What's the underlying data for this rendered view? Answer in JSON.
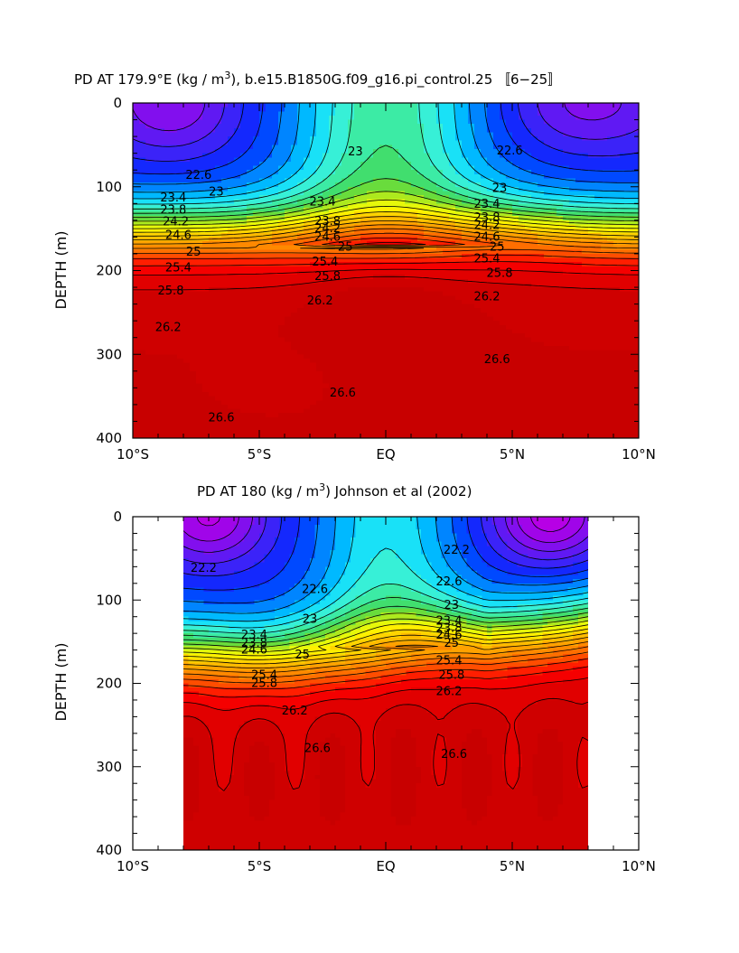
{
  "chart_data": [
    {
      "type": "contour",
      "title": "PD AT 179.9°E (kg / m³), b.e15.B1850G.f09_g16.pi_control.25 〚6−25〛",
      "title_main": "PD AT 179.9°E (kg / m",
      "title_sup": "3",
      "title_rest": "), b.e15.B1850G.f09_g16.pi_control.25 〚6−25〛",
      "ylabel": "DEPTH (m)",
      "xlim": [
        -10,
        10
      ],
      "ylim": [
        400,
        0
      ],
      "x_ticklabels": [
        "10°S",
        "5°S",
        "EQ",
        "5°N",
        "10°N"
      ],
      "y_ticklabels": [
        "0",
        "100",
        "200",
        "300",
        "400"
      ],
      "data_x": [
        -10,
        10
      ],
      "levels": [
        21.0,
        21.2,
        21.4,
        21.6,
        21.8,
        22.0,
        22.2,
        22.4,
        22.6,
        22.8,
        23.0,
        23.2,
        23.4,
        23.6,
        23.8,
        24.0,
        24.2,
        24.4,
        24.6,
        24.8,
        25.0,
        25.2,
        25.4,
        25.6,
        25.8,
        26.0,
        26.2,
        26.4,
        26.6
      ],
      "contour_labels": [
        {
          "text": "22.6",
          "x": -7.4,
          "y": 86
        },
        {
          "text": "23",
          "x": -6.7,
          "y": 106
        },
        {
          "text": "23.4",
          "x": -8.4,
          "y": 113
        },
        {
          "text": "23.8",
          "x": -8.4,
          "y": 128
        },
        {
          "text": "24.2",
          "x": -8.3,
          "y": 142
        },
        {
          "text": "24.6",
          "x": -8.2,
          "y": 158
        },
        {
          "text": "25",
          "x": -7.6,
          "y": 178
        },
        {
          "text": "25.4",
          "x": -8.2,
          "y": 197
        },
        {
          "text": "25.8",
          "x": -8.5,
          "y": 224
        },
        {
          "text": "26.2",
          "x": -8.6,
          "y": 268
        },
        {
          "text": "26.6",
          "x": -6.5,
          "y": 376
        },
        {
          "text": "23",
          "x": -1.2,
          "y": 58
        },
        {
          "text": "23.4",
          "x": -2.5,
          "y": 118
        },
        {
          "text": "23.8",
          "x": -2.3,
          "y": 141
        },
        {
          "text": "24.2",
          "x": -2.3,
          "y": 150
        },
        {
          "text": "24.6",
          "x": -2.3,
          "y": 160
        },
        {
          "text": "25",
          "x": -1.6,
          "y": 172
        },
        {
          "text": "25.4",
          "x": -2.4,
          "y": 190
        },
        {
          "text": "25.8",
          "x": -2.3,
          "y": 207
        },
        {
          "text": "26.2",
          "x": -2.6,
          "y": 236
        },
        {
          "text": "26.6",
          "x": -1.7,
          "y": 346
        },
        {
          "text": "22.6",
          "x": 4.9,
          "y": 57
        },
        {
          "text": "23",
          "x": 4.5,
          "y": 102
        },
        {
          "text": "23.4",
          "x": 4.0,
          "y": 121
        },
        {
          "text": "23.8",
          "x": 4.0,
          "y": 137
        },
        {
          "text": "24.2",
          "x": 4.0,
          "y": 146
        },
        {
          "text": "24.6",
          "x": 4.0,
          "y": 160
        },
        {
          "text": "25",
          "x": 4.4,
          "y": 172
        },
        {
          "text": "25.4",
          "x": 4.0,
          "y": 186
        },
        {
          "text": "25.8",
          "x": 4.5,
          "y": 203
        },
        {
          "text": "26.2",
          "x": 4.0,
          "y": 231
        },
        {
          "text": "26.6",
          "x": 4.4,
          "y": 306
        }
      ],
      "grid": false,
      "legend": "none"
    },
    {
      "type": "contour",
      "title": "PD AT 180 (kg / m³) Johnson et al (2002)",
      "title_main": "PD AT 180 (kg / m",
      "title_sup": "3",
      "title_rest": ") Johnson et al (2002)",
      "ylabel": "DEPTH (m)",
      "xlim": [
        -10,
        10
      ],
      "ylim": [
        400,
        0
      ],
      "x_ticklabels": [
        "10°S",
        "5°S",
        "EQ",
        "5°N",
        "10°N"
      ],
      "y_ticklabels": [
        "0",
        "100",
        "200",
        "300",
        "400"
      ],
      "data_x": [
        -8,
        8
      ],
      "levels": [
        21.0,
        21.2,
        21.4,
        21.6,
        21.8,
        22.0,
        22.2,
        22.4,
        22.6,
        22.8,
        23.0,
        23.2,
        23.4,
        23.6,
        23.8,
        24.0,
        24.2,
        24.4,
        24.6,
        24.8,
        25.0,
        25.2,
        25.4,
        25.6,
        25.8,
        26.0,
        26.2,
        26.4,
        26.6
      ],
      "contour_labels": [
        {
          "text": "22.2",
          "x": -7.2,
          "y": 62
        },
        {
          "text": "22.6",
          "x": -2.8,
          "y": 87
        },
        {
          "text": "23",
          "x": -3.0,
          "y": 123
        },
        {
          "text": "23.4",
          "x": -5.2,
          "y": 142
        },
        {
          "text": "23.8",
          "x": -5.2,
          "y": 152
        },
        {
          "text": "24.6",
          "x": -5.2,
          "y": 160
        },
        {
          "text": "25",
          "x": -3.3,
          "y": 166
        },
        {
          "text": "25.4",
          "x": -4.8,
          "y": 190
        },
        {
          "text": "25.8",
          "x": -4.8,
          "y": 200
        },
        {
          "text": "26.2",
          "x": -3.6,
          "y": 233
        },
        {
          "text": "26.6",
          "x": -2.7,
          "y": 278
        },
        {
          "text": "22.2",
          "x": 2.8,
          "y": 40
        },
        {
          "text": "22.6",
          "x": 2.5,
          "y": 78
        },
        {
          "text": "23",
          "x": 2.6,
          "y": 106
        },
        {
          "text": "23.4",
          "x": 2.5,
          "y": 125
        },
        {
          "text": "23.8",
          "x": 2.5,
          "y": 134
        },
        {
          "text": "24.6",
          "x": 2.5,
          "y": 142
        },
        {
          "text": "25",
          "x": 2.6,
          "y": 152
        },
        {
          "text": "25.4",
          "x": 2.5,
          "y": 173
        },
        {
          "text": "25.8",
          "x": 2.6,
          "y": 190
        },
        {
          "text": "26.2",
          "x": 2.5,
          "y": 210
        },
        {
          "text": "26.6",
          "x": 2.7,
          "y": 285
        }
      ],
      "grid": false,
      "legend": "none"
    }
  ]
}
